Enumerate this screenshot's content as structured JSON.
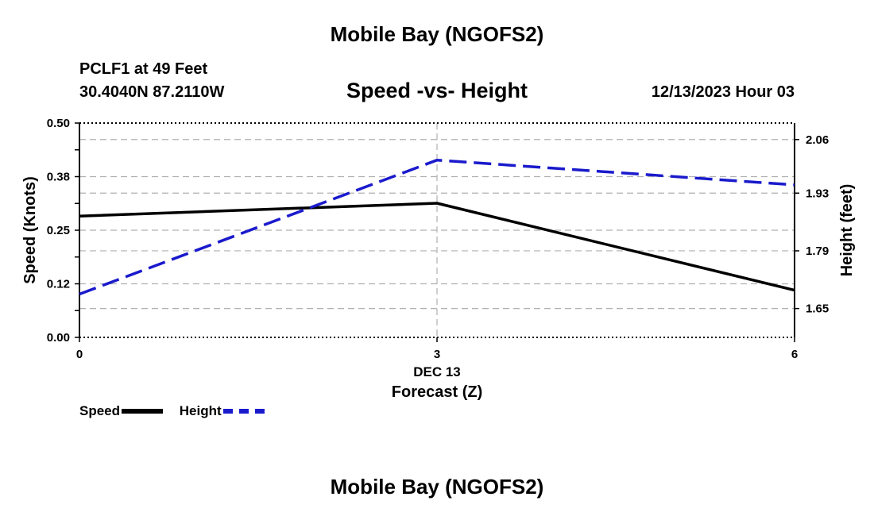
{
  "main_title": "Mobile Bay (NGOFS2)",
  "bottom_title": "Mobile Bay (NGOFS2)",
  "station": "PCLF1 at 49 Feet",
  "coords": "30.4040N  87.2110W",
  "subtitle": "Speed -vs- Height",
  "datetime": "12/13/2023 Hour 03",
  "colors": {
    "speed": "#000000",
    "height": "#1a1acc",
    "grid": "#b0b0b0"
  },
  "chart_data": {
    "type": "line",
    "title": "Speed -vs- Height",
    "xlabel": "Forecast (Z)",
    "x_date_label": "DEC 13",
    "ylabel_left": "Speed (Knots)",
    "ylabel_right": "Height (feet)",
    "x": [
      0,
      3,
      6
    ],
    "x_ticks": [
      "0",
      "3",
      "6"
    ],
    "xlim": [
      0,
      6
    ],
    "ylim_left": [
      0,
      0.5
    ],
    "ylim_right": [
      1.58,
      2.1
    ],
    "y_left_ticks": [
      "0.00",
      "0.12",
      "0.25",
      "0.38",
      "0.50"
    ],
    "y_left_tick_values": [
      0,
      0.125,
      0.25,
      0.375,
      0.5
    ],
    "y_right_ticks": [
      "1.65",
      "1.79",
      "1.93",
      "2.06"
    ],
    "y_right_tick_values": [
      1.65,
      1.79,
      1.93,
      2.06
    ],
    "series": [
      {
        "name": "Speed",
        "axis": "left",
        "style": "solid",
        "values": [
          0.283,
          0.313,
          0.11
        ]
      },
      {
        "name": "Height",
        "axis": "right",
        "style": "dashed",
        "values": [
          1.685,
          2.01,
          1.95
        ]
      }
    ]
  }
}
